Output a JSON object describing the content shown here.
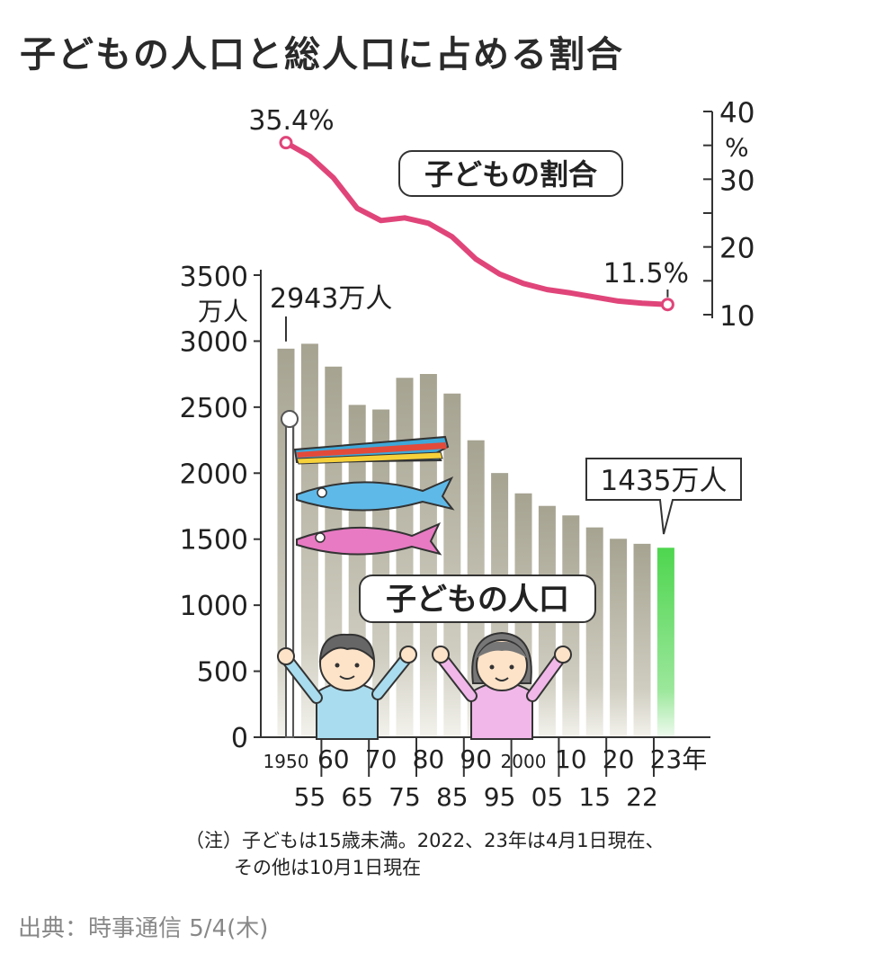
{
  "title": "子どもの人口と総人口に占める割合",
  "note_lines": [
    "（注）子どもは15歳未満。2022、23年は4月1日現在、",
    "その他は10月1日現在"
  ],
  "source": "出典：時事通信 5/4(木)",
  "colors": {
    "bar": "#a6a391",
    "bar_highlight": "#4ed64e",
    "ratio_line": "#e0457a",
    "text": "#222222",
    "source_text": "#888888"
  },
  "icons": [
    "carp-streamer-icon",
    "child-boy-icon",
    "child-girl-icon"
  ],
  "chart_data": [
    {
      "type": "bar",
      "title": "子どもの人口",
      "ylabel": "万人",
      "ylim": [
        0,
        3500
      ],
      "yticks": [
        "3500",
        "3000",
        "2500",
        "2000",
        "1500",
        "1000",
        "500",
        "0"
      ],
      "xtick_top": [
        "1950",
        "60",
        "70",
        "80",
        "90",
        "2000",
        "10",
        "20",
        "23年"
      ],
      "xtick_bottom": [
        "55",
        "65",
        "75",
        "85",
        "95",
        "05",
        "15",
        "22"
      ],
      "categories": [
        "1950",
        "1955",
        "1960",
        "1965",
        "1970",
        "1975",
        "1980",
        "1985",
        "1990",
        "1995",
        "2000",
        "2005",
        "2010",
        "2015",
        "2020",
        "2022",
        "2023"
      ],
      "values": [
        2943,
        2980,
        2807,
        2517,
        2482,
        2722,
        2751,
        2603,
        2249,
        2001,
        1847,
        1752,
        1680,
        1589,
        1503,
        1465,
        1435
      ],
      "labels": [
        {
          "category": "1950",
          "text": "2943万人"
        },
        {
          "category": "2023",
          "text": "1435万人"
        }
      ]
    },
    {
      "type": "line",
      "title": "子どもの割合",
      "ylabel": "%",
      "ylim": [
        10,
        40
      ],
      "yticks": [
        "40",
        "30",
        "20",
        "10"
      ],
      "categories": [
        "1950",
        "1955",
        "1960",
        "1965",
        "1970",
        "1975",
        "1980",
        "1985",
        "1990",
        "1995",
        "2000",
        "2005",
        "2010",
        "2015",
        "2020",
        "2022",
        "2023"
      ],
      "values": [
        35.4,
        33.4,
        30.2,
        25.7,
        23.9,
        24.3,
        23.5,
        21.5,
        18.2,
        16.0,
        14.6,
        13.7,
        13.2,
        12.6,
        12.0,
        11.7,
        11.5
      ],
      "labels": [
        {
          "category": "1950",
          "text": "35.4%"
        },
        {
          "category": "2023",
          "text": "11.5%"
        }
      ]
    }
  ]
}
